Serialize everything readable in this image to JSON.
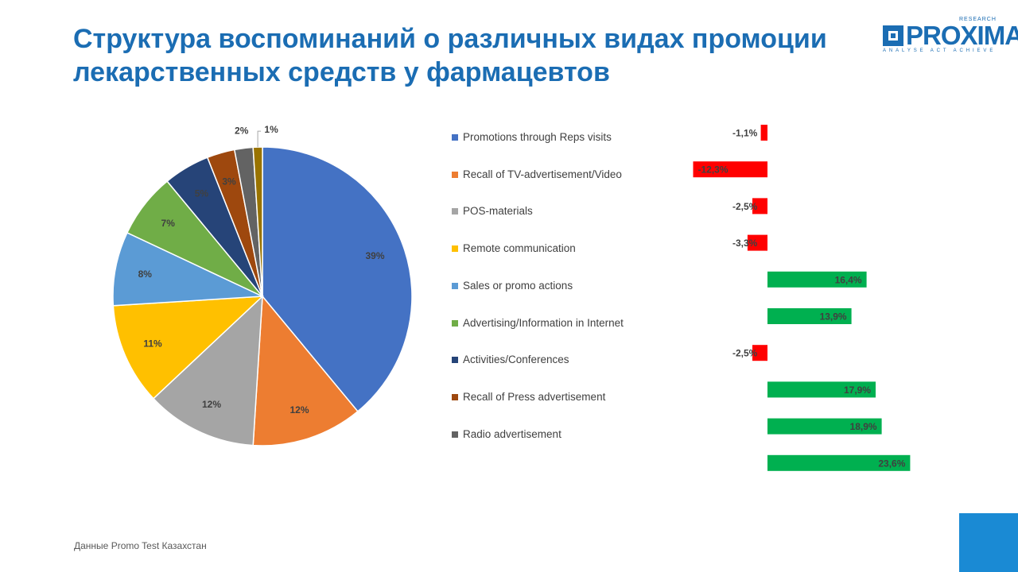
{
  "title": "Структура воспоминаний о различных видах промоции лекарственных средств у фармацевтов",
  "logo": {
    "name": "PROXIMA",
    "subtitle": "RESEARCH",
    "tagline": "ANALYSE ACT ACHIEVE"
  },
  "source": "Данные Promo  Test Казахстан",
  "colors": {
    "title": "#1b6db3",
    "positive": "#00b050",
    "negative": "#ff0000",
    "corner": "#1a8ad4"
  },
  "chart_data": [
    {
      "type": "pie",
      "title": "",
      "categories": [
        "Promotions through Reps visits",
        "Recall of TV-advertisement/Video",
        "POS-materials",
        "Remote communication",
        "Sales or promo actions",
        "Advertising/Information in Internet",
        "Activities/Conferences",
        "Recall of Press advertisement",
        "Radio advertisement",
        ""
      ],
      "values": [
        39,
        12,
        12,
        11,
        8,
        7,
        5,
        3,
        2,
        1
      ],
      "labels": [
        "39%",
        "12%",
        "12%",
        "11%",
        "8%",
        "7%",
        "5%",
        "3%",
        "2%",
        "1%"
      ],
      "colors": [
        "#4472c4",
        "#ed7d31",
        "#a5a5a5",
        "#ffc000",
        "#5b9bd5",
        "#70ad47",
        "#264478",
        "#9e480e",
        "#636363",
        "#997300"
      ],
      "legend_placement": "right"
    },
    {
      "type": "bar",
      "orientation": "horizontal",
      "title": "",
      "values": [
        -1.1,
        -12.3,
        -2.5,
        -3.3,
        16.4,
        13.9,
        -2.5,
        17.9,
        18.9,
        23.6
      ],
      "labels": [
        "-1,1%",
        "-12,3%",
        "-2,5%",
        "-3,3%",
        "16,4%",
        "13,9%",
        "-2,5%",
        "17,9%",
        "18,9%",
        "23,6%"
      ],
      "positive_color": "#00b050",
      "negative_color": "#ff0000"
    }
  ]
}
